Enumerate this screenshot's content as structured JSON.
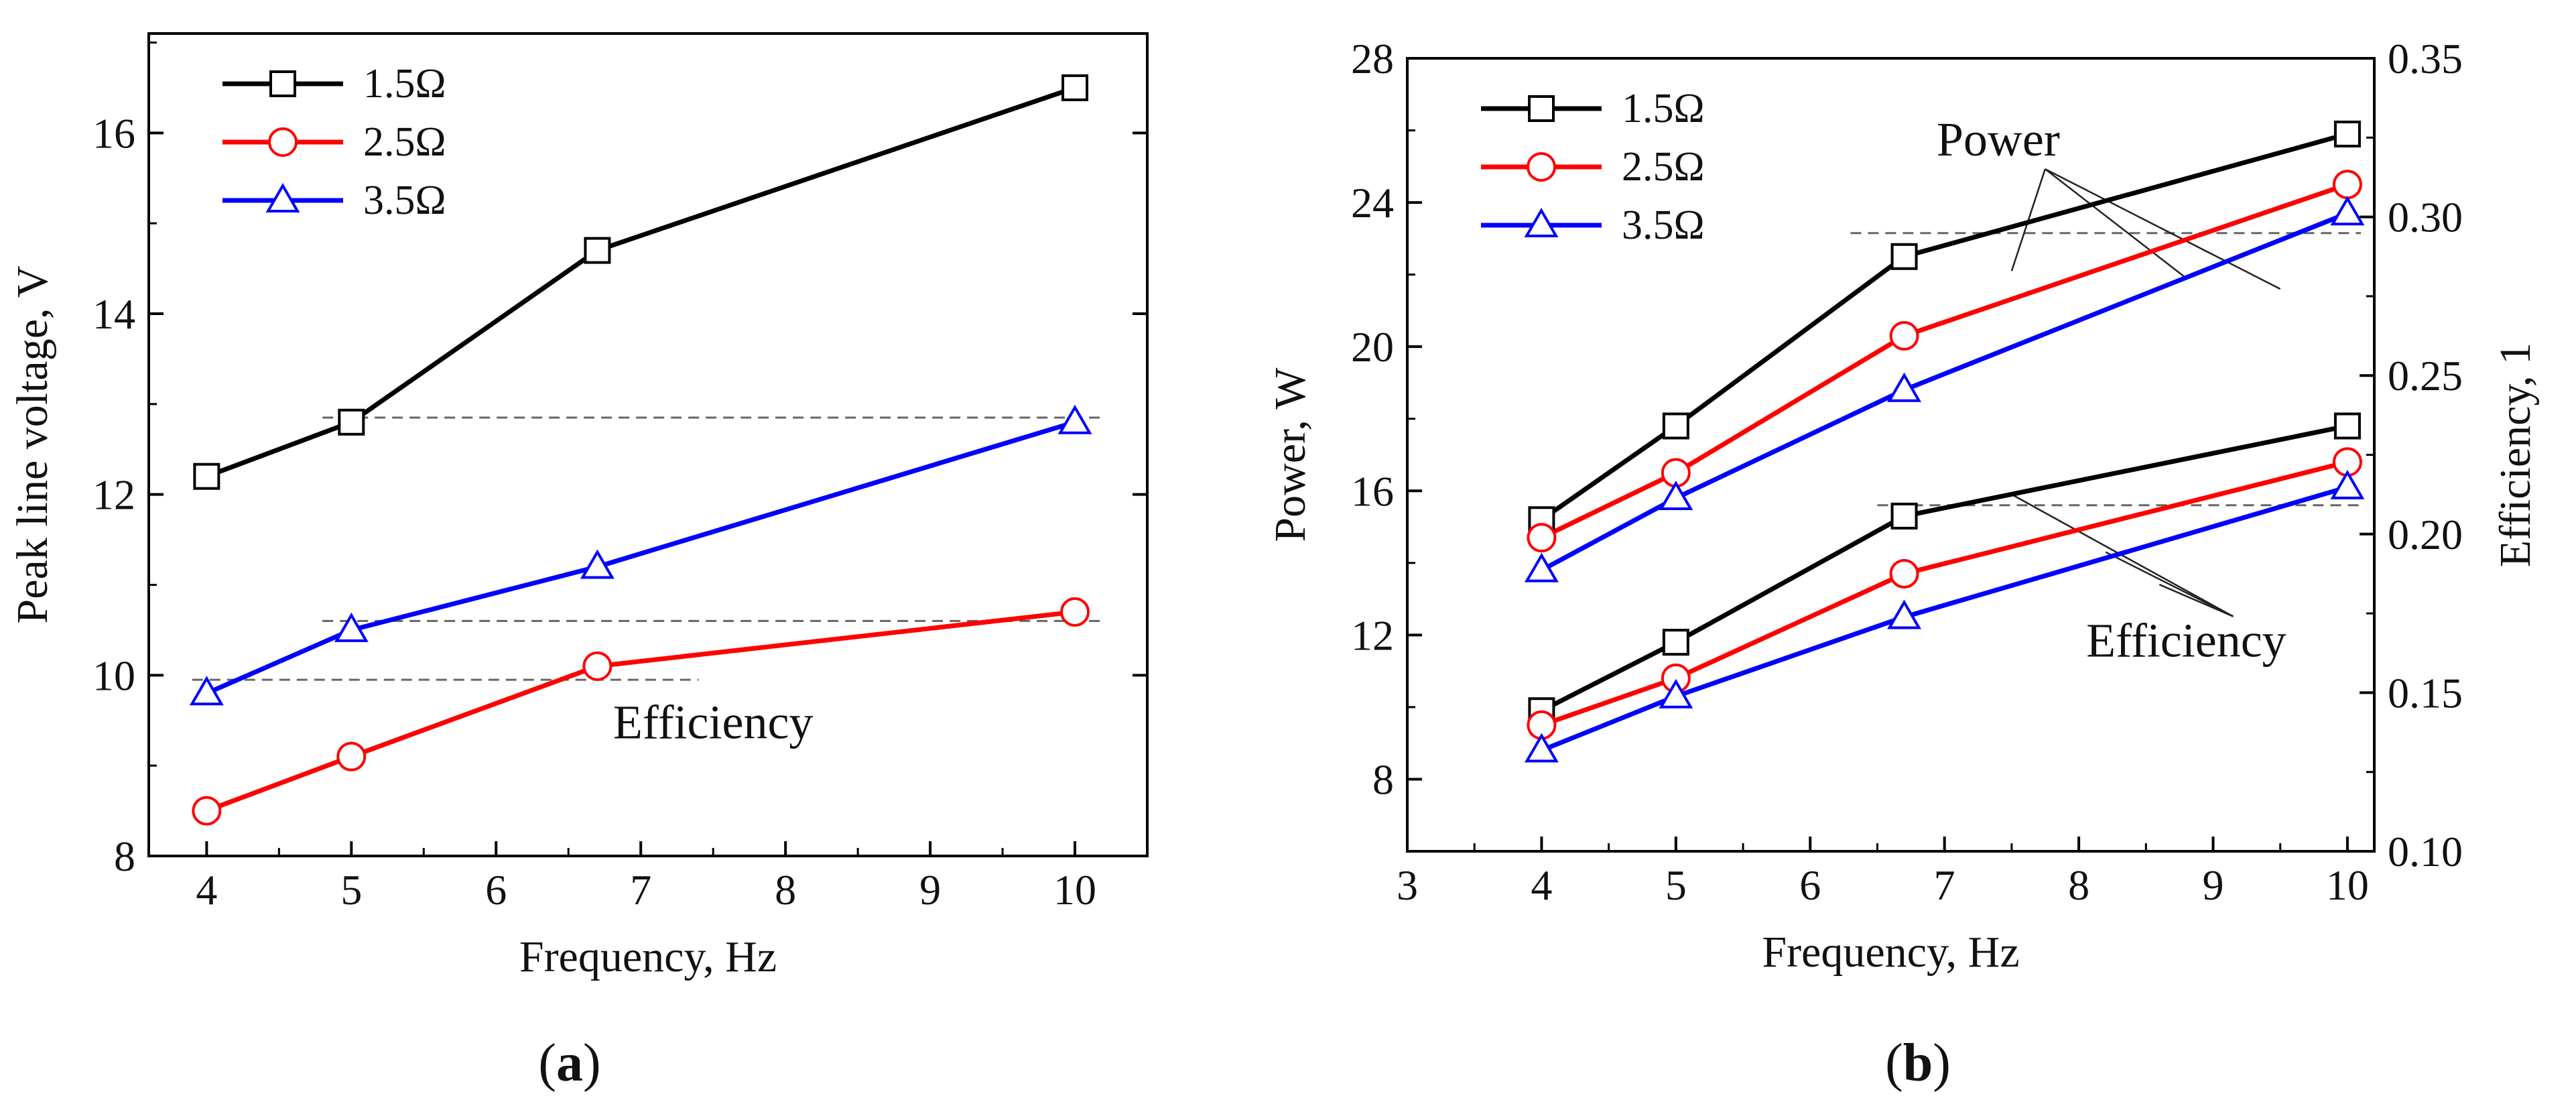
{
  "panels": [
    {
      "paren_open": "(",
      "letter": "a",
      "paren_close": ")"
    },
    {
      "paren_open": "(",
      "letter": "b",
      "paren_close": ")"
    }
  ],
  "chart_data": [
    {
      "type": "line",
      "title": "",
      "xlabel": "Frequency, Hz",
      "ylabel": "Peak line voltage, V",
      "xlim": [
        3.6,
        10.5
      ],
      "ylim": [
        8,
        17.1
      ],
      "xticks": [
        4,
        5,
        6,
        7,
        8,
        9,
        10
      ],
      "xtick_labels": [
        "4",
        "5",
        "6",
        "7",
        "8",
        "9",
        "10"
      ],
      "yticks": [
        8,
        10,
        12,
        14,
        16
      ],
      "ytick_labels": [
        "8",
        "10",
        "12",
        "14",
        "16"
      ],
      "grid": false,
      "legend": "top-left",
      "x": [
        4,
        5,
        6.7,
        10
      ],
      "series": [
        {
          "name": "1.5Ω",
          "color": "#000000",
          "marker": "square",
          "values": [
            12.2,
            12.8,
            14.7,
            16.5
          ]
        },
        {
          "name": "2.5Ω",
          "color": "#ff0000",
          "marker": "circle",
          "values": [
            8.5,
            9.1,
            10.1,
            10.7
          ]
        },
        {
          "name": "3.5Ω",
          "color": "#0000ff",
          "marker": "triangle",
          "values": [
            9.8,
            10.5,
            11.2,
            12.8
          ]
        }
      ],
      "annotations": [
        {
          "text": "Efficiency",
          "x": 7.5,
          "y": 9.3
        }
      ],
      "reference_lines": [
        {
          "y": 12.85,
          "x_from": 4.8,
          "x_to": 10.2
        },
        {
          "y": 10.6,
          "x_from": 4.8,
          "x_to": 10.2
        },
        {
          "y": 9.95,
          "x_from": 3.9,
          "x_to": 7.4
        }
      ]
    },
    {
      "type": "line",
      "title": "",
      "xlabel": "Frequency, Hz",
      "ylabel": "Power, W",
      "y2label": "Efficiency, 1",
      "xlim": [
        3,
        10.2
      ],
      "ylim": [
        6,
        28
      ],
      "y2lim": [
        0.1,
        0.35
      ],
      "xticks": [
        3,
        4,
        5,
        6,
        7,
        8,
        9,
        10
      ],
      "xtick_labels": [
        "3",
        "4",
        "5",
        "6",
        "7",
        "8",
        "9",
        "10"
      ],
      "yticks": [
        8,
        12,
        16,
        20,
        24,
        28
      ],
      "ytick_labels": [
        "8",
        "12",
        "16",
        "20",
        "24",
        "28"
      ],
      "y2ticks": [
        0.1,
        0.15,
        0.2,
        0.25,
        0.3,
        0.35
      ],
      "y2tick_labels": [
        "0.10",
        "0.15",
        "0.20",
        "0.25",
        "0.30",
        "0.35"
      ],
      "grid": false,
      "legend": "top-left",
      "x": [
        4,
        5,
        6.7,
        10
      ],
      "series": [
        {
          "name": "1.5Ω",
          "group": "Power",
          "color": "#000000",
          "marker": "square",
          "values": [
            15.2,
            17.8,
            22.5,
            25.9
          ]
        },
        {
          "name": "2.5Ω",
          "group": "Power",
          "color": "#ff0000",
          "marker": "circle",
          "values": [
            14.7,
            16.5,
            20.3,
            24.5
          ]
        },
        {
          "name": "3.5Ω",
          "group": "Power",
          "color": "#0000ff",
          "marker": "triangle",
          "values": [
            13.8,
            15.8,
            18.8,
            23.7
          ]
        },
        {
          "name": "1.5Ω",
          "group": "Efficiency",
          "color": "#000000",
          "marker": "square",
          "values": [
            9.9,
            11.8,
            15.3,
            17.8
          ]
        },
        {
          "name": "2.5Ω",
          "group": "Efficiency",
          "color": "#ff0000",
          "marker": "circle",
          "values": [
            9.5,
            10.8,
            13.7,
            16.8
          ]
        },
        {
          "name": "3.5Ω",
          "group": "Efficiency",
          "color": "#0000ff",
          "marker": "triangle",
          "values": [
            8.8,
            10.3,
            12.5,
            16.1
          ]
        }
      ],
      "annotations": [
        {
          "text": "Power",
          "x": 7.4,
          "y": 25.3,
          "pointers": [
            [
              7.5,
              22.1
            ],
            [
              8.8,
              21.9
            ],
            [
              9.5,
              21.6
            ]
          ]
        },
        {
          "text": "Efficiency",
          "x": 8.8,
          "y": 11.4,
          "pointers": [
            [
              7.5,
              15.9
            ],
            [
              8.2,
              14.3
            ],
            [
              8.6,
              13.4
            ]
          ]
        }
      ],
      "reference_lines": [
        {
          "y": 23.15,
          "x_from": 6.3,
          "x_to": 10.1
        },
        {
          "y": 15.6,
          "x_from": 6.5,
          "x_to": 10.1
        }
      ]
    }
  ]
}
